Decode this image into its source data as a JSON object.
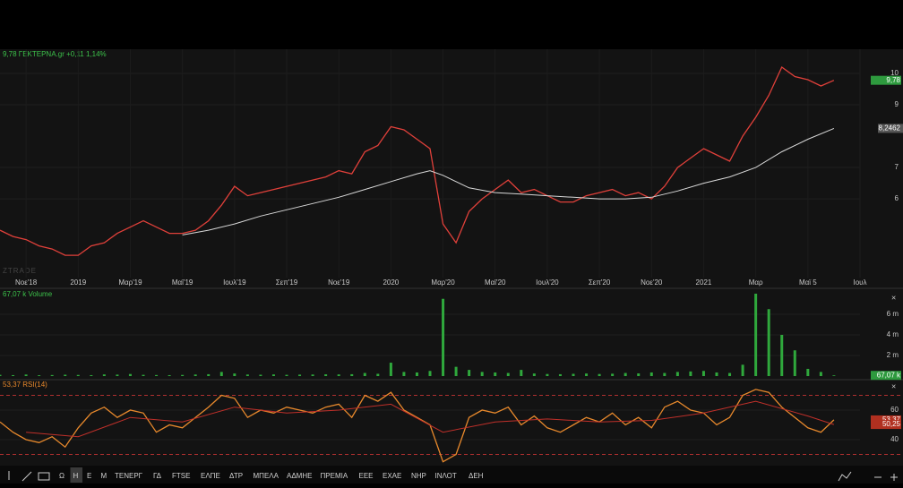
{
  "header": {
    "quote": "9,78 ΓΕΚΤΕΡΝΑ.gr +0,11 1,14%",
    "watermark": "ZTRADE"
  },
  "chart_data": [
    {
      "type": "line",
      "x": [
        0,
        1,
        2,
        3,
        4,
        5,
        6,
        7,
        8,
        9,
        10,
        11,
        12,
        13,
        14,
        15,
        16,
        17,
        18,
        19,
        20,
        21,
        22,
        23,
        24,
        25,
        26,
        27,
        28,
        29,
        30,
        31,
        32,
        33,
        34,
        35,
        36,
        37,
        38,
        39,
        40,
        41,
        42,
        43,
        44,
        45,
        46,
        47,
        48,
        49,
        50,
        51,
        52,
        53,
        54,
        55,
        56,
        57,
        58,
        59,
        60,
        61,
        62,
        63,
        64
      ],
      "xlim": [
        0,
        66
      ],
      "xticks": [
        {
          "value": 2,
          "label": "Νοε'18"
        },
        {
          "value": 6,
          "label": "2019"
        },
        {
          "value": 10,
          "label": "Μαρ'19"
        },
        {
          "value": 14,
          "label": "Μαϊ'19"
        },
        {
          "value": 18,
          "label": "Ιουλ'19"
        },
        {
          "value": 22,
          "label": "Σεπ'19"
        },
        {
          "value": 26,
          "label": "Νοε'19"
        },
        {
          "value": 30,
          "label": "2020"
        },
        {
          "value": 34,
          "label": "Μαρ'20"
        },
        {
          "value": 38,
          "label": "Μαϊ'20"
        },
        {
          "value": 42,
          "label": "Ιουλ'20"
        },
        {
          "value": 46,
          "label": "Σεπ'20"
        },
        {
          "value": 50,
          "label": "Νοε'20"
        },
        {
          "value": 54,
          "label": "2021"
        },
        {
          "value": 58,
          "label": "Μαρ"
        },
        {
          "value": 62,
          "label": "Μαϊ 5"
        },
        {
          "value": 66,
          "label": "Ιουλ"
        }
      ],
      "ylim": [
        3.49,
        10.77
      ],
      "yticks": [
        6,
        7,
        9,
        10
      ],
      "series": [
        {
          "color": "#e0403a",
          "values": [
            5.0,
            4.8,
            4.7,
            4.5,
            4.4,
            4.2,
            4.2,
            4.5,
            4.6,
            4.9,
            5.1,
            5.3,
            5.1,
            4.9,
            4.9,
            5.0,
            5.3,
            5.8,
            6.4,
            6.1,
            6.2,
            6.3,
            6.4,
            6.5,
            6.6,
            6.7,
            6.9,
            6.8,
            7.5,
            7.7,
            8.3,
            8.2,
            7.9,
            7.6,
            5.2,
            4.6,
            5.6,
            6.0,
            6.3,
            6.6,
            6.2,
            6.3,
            6.1,
            5.9,
            5.9,
            6.1,
            6.2,
            6.3,
            6.1,
            6.2,
            6.0,
            6.4,
            7.0,
            7.3,
            7.6,
            7.4,
            7.2,
            8.0,
            8.6,
            9.3,
            10.2,
            9.9,
            9.8,
            9.6,
            9.78
          ]
        },
        {
          "color": "#d8d8d8",
          "x": [
            14,
            16,
            18,
            20,
            22,
            24,
            26,
            28,
            30,
            32,
            33,
            34,
            36,
            38,
            40,
            42,
            44,
            46,
            48,
            50,
            52,
            54,
            56,
            58,
            60,
            62,
            64
          ],
          "values": [
            4.85,
            5.0,
            5.2,
            5.45,
            5.65,
            5.85,
            6.05,
            6.3,
            6.55,
            6.8,
            6.9,
            6.75,
            6.35,
            6.2,
            6.15,
            6.1,
            6.05,
            6.0,
            6.0,
            6.05,
            6.25,
            6.5,
            6.7,
            7.0,
            7.5,
            7.9,
            8.2462
          ]
        }
      ],
      "last_labels": [
        {
          "value": 9.78,
          "label": "9,78",
          "color": "#2e9a3e"
        },
        {
          "value": 8.2462,
          "label": "8,2462",
          "color": "#555555"
        }
      ]
    },
    {
      "type": "bar",
      "title": "67,07 k Volume",
      "x": [
        0,
        1,
        2,
        3,
        4,
        5,
        6,
        7,
        8,
        9,
        10,
        11,
        12,
        13,
        14,
        15,
        16,
        17,
        18,
        19,
        20,
        21,
        22,
        23,
        24,
        25,
        26,
        27,
        28,
        29,
        30,
        31,
        32,
        33,
        34,
        35,
        36,
        37,
        38,
        39,
        40,
        41,
        42,
        43,
        44,
        45,
        46,
        47,
        48,
        49,
        50,
        51,
        52,
        53,
        54,
        55,
        56,
        57,
        58,
        59,
        60,
        61,
        62,
        63,
        64
      ],
      "xlim": [
        0,
        66
      ],
      "color": "#2fa83c",
      "values": [
        120000,
        90000,
        150000,
        80000,
        100000,
        130000,
        110000,
        90000,
        160000,
        140000,
        200000,
        120000,
        100000,
        90000,
        110000,
        150000,
        180000,
        400000,
        250000,
        150000,
        130000,
        160000,
        120000,
        140000,
        150000,
        170000,
        160000,
        180000,
        300000,
        220000,
        1300000,
        400000,
        350000,
        500000,
        7500000,
        900000,
        600000,
        400000,
        350000,
        300000,
        600000,
        250000,
        200000,
        180000,
        220000,
        250000,
        200000,
        230000,
        300000,
        260000,
        350000,
        300000,
        400000,
        450000,
        500000,
        350000,
        300000,
        1100000,
        8000000,
        6500000,
        4000000,
        2500000,
        700000,
        400000,
        67070
      ],
      "ylim": [
        0,
        8260000
      ],
      "yticks": [
        {
          "value": 2000000,
          "label": "2 m"
        },
        {
          "value": 4000000,
          "label": "4 m"
        },
        {
          "value": 6000000,
          "label": "6 m"
        }
      ],
      "last_labels": [
        {
          "value": 67070,
          "label": "67,07 k",
          "color": "#2e9a3e"
        }
      ]
    },
    {
      "type": "line",
      "title": "53,37 RSI(14)",
      "x": [
        0,
        1,
        2,
        3,
        4,
        5,
        6,
        7,
        8,
        9,
        10,
        11,
        12,
        13,
        14,
        15,
        16,
        17,
        18,
        19,
        20,
        21,
        22,
        23,
        24,
        25,
        26,
        27,
        28,
        29,
        30,
        31,
        32,
        33,
        34,
        35,
        36,
        37,
        38,
        39,
        40,
        41,
        42,
        43,
        44,
        45,
        46,
        47,
        48,
        49,
        50,
        51,
        52,
        53,
        54,
        55,
        56,
        57,
        58,
        59,
        60,
        61,
        62,
        63,
        64
      ],
      "xlim": [
        0,
        66
      ],
      "ylim": [
        22.4,
        78.8
      ],
      "yticks": [
        40,
        60
      ],
      "levels": [
        30,
        70
      ],
      "series": [
        {
          "color": "#e8892c",
          "values": [
            52,
            45,
            40,
            38,
            42,
            35,
            48,
            58,
            62,
            55,
            60,
            58,
            45,
            50,
            48,
            55,
            62,
            70,
            68,
            55,
            60,
            58,
            62,
            60,
            58,
            62,
            64,
            55,
            70,
            66,
            72,
            60,
            55,
            50,
            25,
            30,
            55,
            60,
            58,
            62,
            50,
            56,
            48,
            45,
            50,
            55,
            52,
            58,
            50,
            55,
            48,
            62,
            66,
            60,
            58,
            50,
            55,
            70,
            74,
            72,
            62,
            55,
            48,
            45,
            53.37
          ]
        },
        {
          "color": "#c0302a",
          "x": [
            2,
            6,
            10,
            14,
            18,
            22,
            26,
            30,
            34,
            38,
            42,
            46,
            50,
            54,
            58,
            62,
            64
          ],
          "values": [
            45,
            42,
            55,
            52,
            62,
            58,
            60,
            64,
            45,
            52,
            54,
            52,
            53,
            58,
            66,
            56,
            50.25
          ]
        }
      ],
      "last_labels": [
        {
          "value": 53.37,
          "label": "53,37",
          "color": "#b03020"
        },
        {
          "value": 50.25,
          "label": "50,25",
          "color": "#b03020"
        }
      ]
    }
  ],
  "toolbar": {
    "items": [
      "Ω",
      "Η",
      "Ε",
      "Μ",
      "ΤΕΝΕΡΓ",
      "ΓΔ",
      "FTSE",
      "ΕΛΠΕ",
      "ΔΤΡ",
      "ΜΠΕΛΑ",
      "ΑΔΜΗΕ",
      "ΠΡΕΜΙΑ",
      "ΕΕΕ",
      "ΕΧΑΕ",
      "ΝΗΡ",
      "ΙΝΛΟΤ",
      "ΔΕΗ"
    ],
    "selected": 1
  }
}
